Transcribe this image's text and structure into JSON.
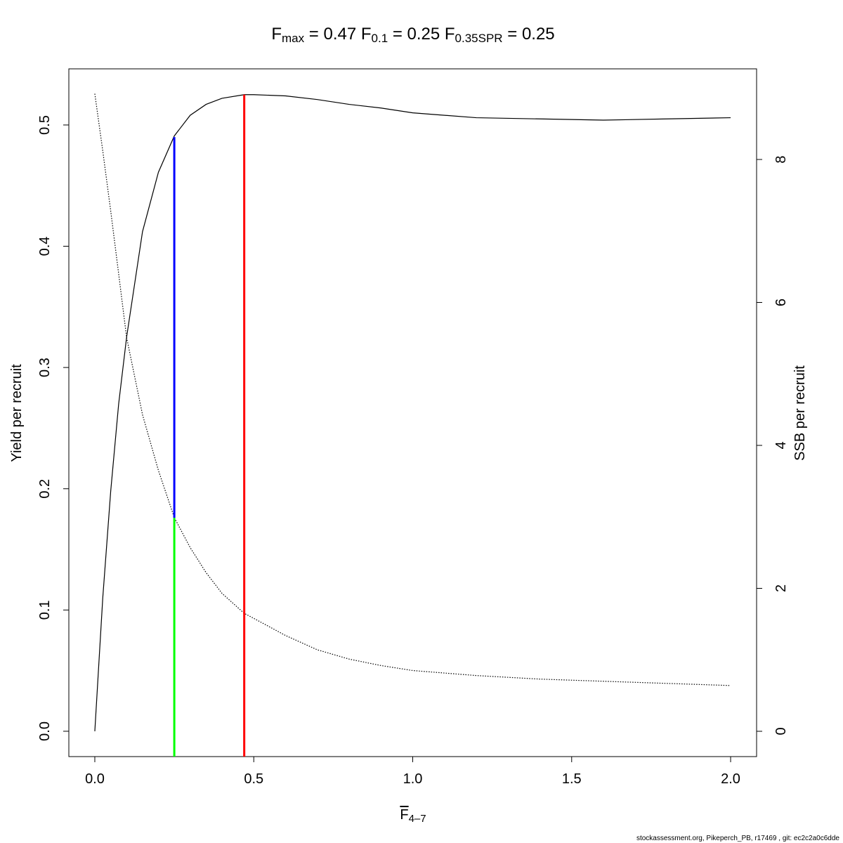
{
  "chart_data": {
    "type": "line",
    "title_segments": [
      {
        "text": "F"
      },
      {
        "text": "max",
        "sub": true
      },
      {
        "text": " = 0.47     F"
      },
      {
        "text": "0.1",
        "sub": true
      },
      {
        "text": " = 0.25     F"
      },
      {
        "text": "0.35SPR",
        "sub": true
      },
      {
        "text": " = 0.25"
      }
    ],
    "x_label_segments": [
      {
        "text": "F",
        "overline": true
      },
      {
        "text": "4–7",
        "sub": true
      }
    ],
    "y_label": "Yield per recruit",
    "y2_label": "SSB per recruit",
    "footer": "stockassessment.org, Pikeperch_PB, r17469 , git: ec2c2a0c6dde",
    "x": [
      0,
      0.025,
      0.05,
      0.075,
      0.1,
      0.15,
      0.2,
      0.25,
      0.3,
      0.35,
      0.4,
      0.47,
      0.5,
      0.6,
      0.7,
      0.8,
      0.9,
      1.0,
      1.2,
      1.4,
      1.6,
      1.8,
      2.0
    ],
    "series": [
      {
        "color": "#000000",
        "line_style": "solid",
        "values": [
          0,
          0.11,
          0.198,
          0.27,
          0.325,
          0.412,
          0.461,
          0.491,
          0.508,
          0.517,
          0.522,
          0.525,
          0.525,
          0.524,
          0.521,
          0.517,
          0.514,
          0.51,
          0.506,
          0.505,
          0.504,
          0.505,
          0.506
        ]
      },
      {
        "color": "#000000",
        "line_style": "dotted",
        "axis": "y2",
        "values": [
          8.92,
          8.12,
          7.28,
          6.4,
          5.51,
          4.43,
          3.65,
          2.99,
          2.57,
          2.22,
          1.93,
          1.65,
          1.58,
          1.34,
          1.14,
          1.01,
          0.92,
          0.85,
          0.78,
          0.73,
          0.7,
          0.67,
          0.64
        ]
      }
    ],
    "vlines": [
      {
        "x": 0.47,
        "top": 0.525,
        "color": "#ff0000"
      },
      {
        "x": 0.25,
        "bottom": 0.176,
        "top": 0.49,
        "color": "#0000ff"
      },
      {
        "x": 0.25,
        "top": 0.176,
        "color": "#00ff00"
      }
    ],
    "xlim": [
      -0.0817,
      2.0817
    ],
    "ylim": [
      -0.0209,
      0.5463
    ],
    "y2lim": [
      -0.354,
      9.268
    ],
    "xticks": [
      {
        "value": 0,
        "label": "0.0"
      },
      0.5,
      {
        "value": 1,
        "label": "1.0"
      },
      1.5,
      {
        "value": 2,
        "label": "2.0"
      }
    ],
    "yticks": [
      {
        "value": 0,
        "label": "0.0"
      },
      0.1,
      0.2,
      0.3,
      0.4,
      0.5
    ],
    "y2ticks": [
      0,
      2,
      4,
      6,
      8
    ],
    "grid": false
  }
}
